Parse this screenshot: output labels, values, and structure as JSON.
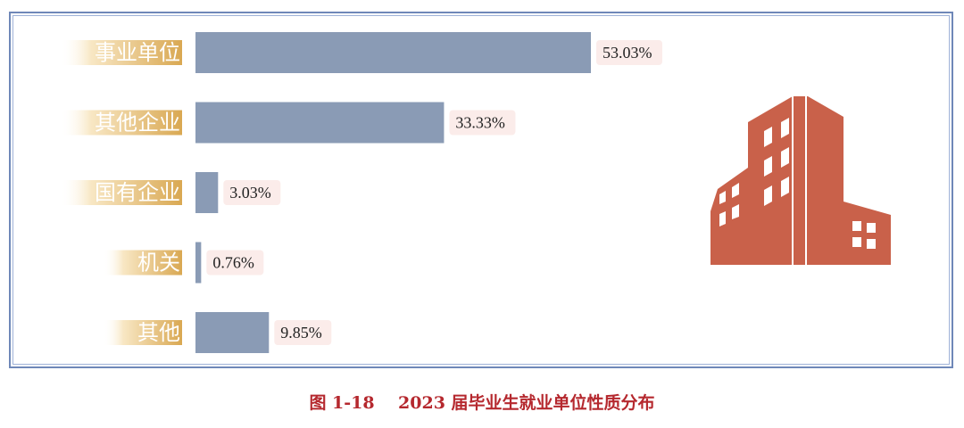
{
  "caption": "图 1-18    2023 届毕业生就业单位性质分布",
  "colors": {
    "bar": "#8a9bb5",
    "label_gold_light": "#f8e7c4",
    "label_gold_dark": "#d9a852",
    "value_bg": "#fbecea",
    "building": "#c9614a",
    "building_dark": "#b4523c",
    "window": "#ffffff"
  },
  "icon": "office-building-icon",
  "chart_data": {
    "type": "bar",
    "orientation": "horizontal",
    "categories": [
      "事业单位",
      "其他企业",
      "国有企业",
      "机关",
      "其他"
    ],
    "values": [
      53.03,
      33.33,
      3.03,
      0.76,
      9.85
    ],
    "value_labels": [
      "53.03%",
      "33.33%",
      "3.03%",
      "0.76%",
      "9.85%"
    ],
    "unit": "%",
    "xlim": [
      0,
      55
    ],
    "grid": false,
    "legend": "none"
  }
}
